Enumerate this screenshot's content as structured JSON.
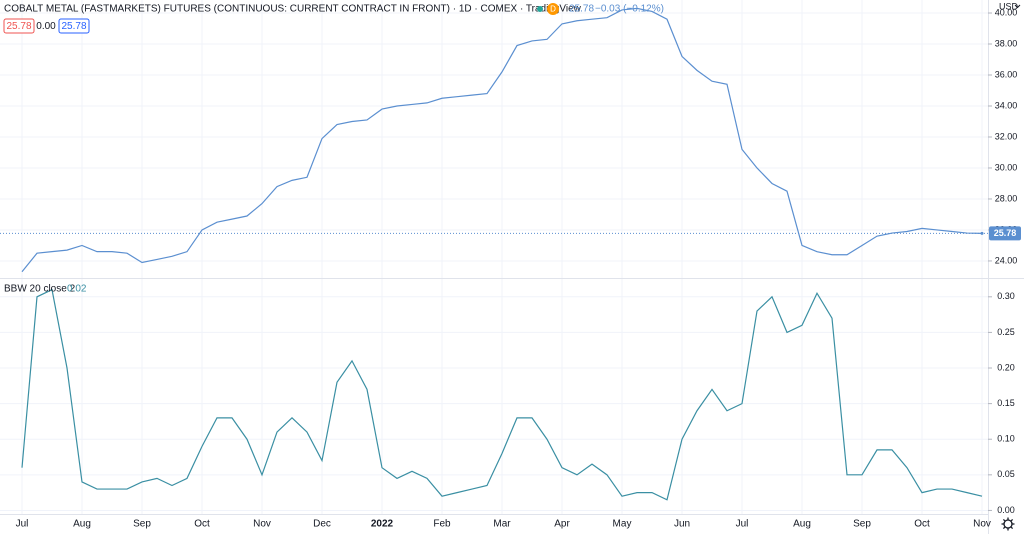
{
  "chart_data": [
    {
      "type": "line",
      "title": "COBALT METAL (FASTMARKETS) FUTURES (CONTINUOUS: CURRENT CONTRACT IN FRONT) · 1D · COMEX · TradingView",
      "badge": "D",
      "change": "−0.03 (−0.12%)",
      "quote_boxes": [
        "25.78",
        "0.00",
        "25.78"
      ],
      "y_unit": "USD",
      "ylim": [
        22.9,
        40.84
      ],
      "yticks": [
        {
          "value": 24,
          "label": "24.00"
        },
        {
          "value": 26,
          "label": "26.00"
        },
        {
          "value": 28,
          "label": "28.00"
        },
        {
          "value": 30,
          "label": "30.00"
        },
        {
          "value": 32,
          "label": "32.00"
        },
        {
          "value": 34,
          "label": "34.00"
        },
        {
          "value": 36,
          "label": "36.00"
        },
        {
          "value": 38,
          "label": "38.00"
        },
        {
          "value": 40,
          "label": "40.00"
        }
      ],
      "grid": true,
      "series": [
        {
          "name": "COBALT METAL",
          "color": "#5b8fd0",
          "values": [
            23.3,
            24.5,
            24.6,
            24.7,
            25.0,
            24.6,
            24.6,
            24.5,
            23.9,
            24.1,
            24.3,
            24.6,
            26.0,
            26.5,
            26.7,
            26.9,
            27.7,
            28.8,
            29.2,
            29.4,
            31.9,
            32.8,
            33.0,
            33.1,
            33.8,
            34.0,
            34.1,
            34.2,
            34.5,
            34.6,
            34.7,
            34.8,
            36.2,
            37.9,
            38.2,
            38.3,
            39.3,
            39.5,
            39.6,
            39.7,
            40.2,
            40.3,
            40.1,
            39.6,
            37.2,
            36.3,
            35.6,
            35.4,
            31.2,
            30.0,
            29.0,
            28.5,
            25.0,
            24.6,
            24.4,
            24.4,
            25.0,
            25.6,
            25.8,
            25.9,
            26.1,
            26.0,
            25.9,
            25.8,
            25.78
          ]
        }
      ]
    },
    {
      "type": "line",
      "title": "BBW 20 close 2",
      "categories": [
        "Jul",
        null,
        null,
        null,
        "Aug",
        null,
        null,
        null,
        "Sep",
        null,
        null,
        null,
        "Oct",
        null,
        null,
        null,
        "Nov",
        null,
        null,
        null,
        "Dec",
        null,
        null,
        null,
        "2022",
        null,
        null,
        null,
        "Feb",
        null,
        null,
        null,
        "Mar",
        null,
        null,
        null,
        "Apr",
        null,
        null,
        null,
        "May",
        null,
        null,
        null,
        "Jun",
        null,
        null,
        null,
        "Jul",
        null,
        null,
        null,
        "Aug",
        null,
        null,
        null,
        "Sep",
        null,
        null,
        null,
        "Oct",
        null,
        null,
        null,
        "Nov"
      ],
      "ylim": [
        -0.005,
        0.325
      ],
      "yticks": [
        {
          "value": 0,
          "label": "0.00"
        },
        0.05,
        {
          "value": 0.1,
          "label": "0.10"
        },
        0.15,
        {
          "value": 0.2,
          "label": "0.20"
        },
        0.25,
        {
          "value": 0.3,
          "label": "0.30"
        }
      ],
      "grid": true,
      "series": [
        {
          "name": "BBW",
          "color": "#3a8fa3",
          "values": [
            0.06,
            0.3,
            0.31,
            0.2,
            0.04,
            0.03,
            0.03,
            0.03,
            0.04,
            0.045,
            0.035,
            0.045,
            0.09,
            0.13,
            0.13,
            0.1,
            0.05,
            0.11,
            0.13,
            0.11,
            0.07,
            0.18,
            0.21,
            0.17,
            0.06,
            0.045,
            0.055,
            0.045,
            0.02,
            0.025,
            0.03,
            0.035,
            0.08,
            0.13,
            0.13,
            0.1,
            0.06,
            0.05,
            0.065,
            0.05,
            0.02,
            0.025,
            0.025,
            0.015,
            0.1,
            0.14,
            0.17,
            0.14,
            0.15,
            0.28,
            0.3,
            0.25,
            0.26,
            0.305,
            0.27,
            0.05,
            0.05,
            0.085,
            0.085,
            0.06,
            0.025,
            0.03,
            0.03,
            0.025,
            0.02
          ]
        }
      ]
    }
  ]
}
